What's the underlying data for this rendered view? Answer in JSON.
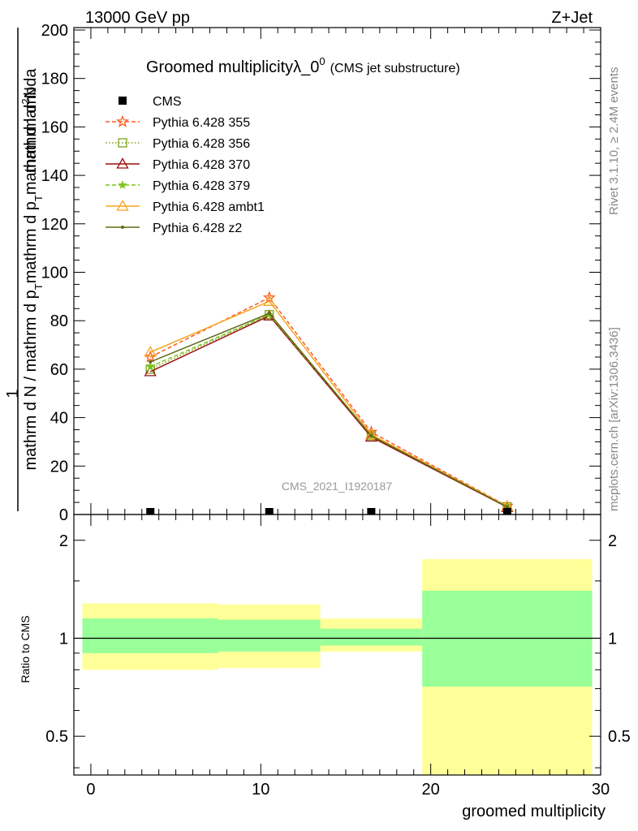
{
  "header": {
    "energy": "13000 GeV pp",
    "process": "Z+Jet",
    "title_main": "Groomed multiplicityλ_0",
    "title_sup": "0",
    "title_sub": "(CMS jet substructure)",
    "watermark": "CMS_2021_I1920187",
    "side_rivet": "Rivet 3.1.10, ≥ 2.4M events",
    "side_site": "mcplots.cern.ch [arXiv:1306.3436]"
  },
  "main_ylabel": {
    "numerator_1": "1",
    "numerator_2": "mathrm d",
    "numerator_3": "2",
    "numerator_4": "N",
    "denominator_1": "mathrm d N / mathrm d p",
    "denominator_2": "T",
    "denominator_3": "mathrm d p",
    "denominator_4": "T",
    "denominator_5": "mathrm d lambda"
  },
  "ratio_ylabel": "Ratio to CMS",
  "xlabel": "groomed multiplicity",
  "chart_data": [
    {
      "type": "line",
      "xlim": [
        -1,
        30
      ],
      "ylim": [
        0,
        201
      ],
      "x_ticks": [
        {
          "v": 0,
          "label": "0"
        },
        {
          "v": 10,
          "label": "10"
        },
        {
          "v": 20,
          "label": "20"
        },
        {
          "v": 30,
          "label": "30"
        }
      ],
      "y_ticks": [
        {
          "v": 0,
          "label": "0"
        },
        {
          "v": 20,
          "label": "20"
        },
        {
          "v": 40,
          "label": "40"
        },
        {
          "v": 60,
          "label": "60"
        },
        {
          "v": 80,
          "label": "80"
        },
        {
          "v": 100,
          "label": "100"
        },
        {
          "v": 120,
          "label": "120"
        },
        {
          "v": 140,
          "label": "140"
        },
        {
          "v": 160,
          "label": "160"
        },
        {
          "v": 180,
          "label": "180"
        },
        {
          "v": 200,
          "label": "200"
        }
      ],
      "data_points": {
        "name": "CMS",
        "x": [
          3.5,
          10.5,
          16.5,
          24.5
        ],
        "y": [
          0.2,
          0.2,
          0.1,
          0.0
        ]
      },
      "series": [
        {
          "name": "Pythia 6.428 355",
          "color": "#ff5a1f",
          "dash": "5,3",
          "marker": "star",
          "x": [
            3.5,
            10.5,
            16.5,
            24.5
          ],
          "y": [
            65,
            89.5,
            34,
            3.5
          ]
        },
        {
          "name": "Pythia 6.428 356",
          "color": "#7ba316",
          "dash": "1.5,2.5",
          "marker": "square",
          "x": [
            3.5,
            10.5,
            16.5,
            24.5
          ],
          "y": [
            60,
            82.5,
            32.5,
            3.2
          ]
        },
        {
          "name": "Pythia 6.428 370",
          "color": "#9a1010",
          "dash": "",
          "marker": "triangle",
          "x": [
            3.5,
            10.5,
            16.5,
            24.5
          ],
          "y": [
            59,
            82,
            32,
            3.0
          ]
        },
        {
          "name": "Pythia 6.428 379",
          "color": "#7bc31c",
          "dash": "5,3",
          "marker": "star-small",
          "x": [
            3.5,
            10.5,
            16.5,
            24.5
          ],
          "y": [
            61,
            82.5,
            32.5,
            3.2
          ]
        },
        {
          "name": "Pythia 6.428 ambt1",
          "color": "#f7a521",
          "dash": "",
          "marker": "triangle",
          "x": [
            3.5,
            10.5,
            16.5,
            24.5
          ],
          "y": [
            67,
            88,
            33,
            3.4
          ]
        },
        {
          "name": "Pythia 6.428 z2",
          "color": "#5e6b14",
          "dash": "",
          "marker": "dot",
          "x": [
            3.5,
            10.5,
            16.5,
            24.5
          ],
          "y": [
            63,
            83,
            32.5,
            3.1
          ]
        }
      ]
    },
    {
      "type": "area",
      "xlim": [
        -1,
        30
      ],
      "ylim": [
        0.38,
        2.4
      ],
      "log_y": true,
      "y_ticks": [
        {
          "v": 0.5,
          "label": "0.5"
        },
        {
          "v": 1,
          "label": "1"
        },
        {
          "v": 2,
          "label": "2"
        }
      ],
      "bins": [
        {
          "x0": -0.5,
          "x1": 7.5,
          "outer": [
            0.8,
            1.28
          ],
          "inner": [
            0.9,
            1.15
          ]
        },
        {
          "x0": 7.5,
          "x1": 13.5,
          "outer": [
            0.81,
            1.27
          ],
          "inner": [
            0.91,
            1.14
          ]
        },
        {
          "x0": 13.5,
          "x1": 19.5,
          "outer": [
            0.91,
            1.15
          ],
          "inner": [
            0.95,
            1.07
          ]
        },
        {
          "x0": 19.5,
          "x1": 29.5,
          "outer": [
            0.36,
            1.75
          ],
          "inner": [
            0.71,
            1.4
          ]
        }
      ],
      "band_colors": {
        "outer": "#ffff99",
        "inner": "#99ff99"
      },
      "reference_line": 1
    }
  ]
}
